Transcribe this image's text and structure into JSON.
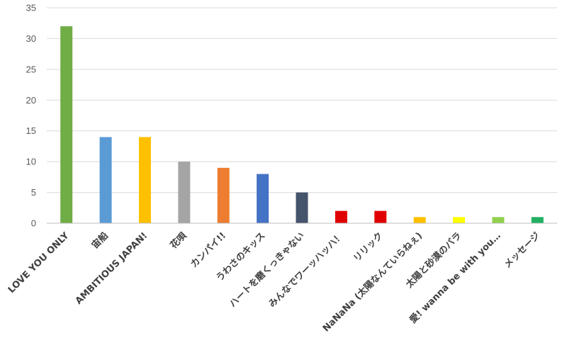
{
  "chart_data": {
    "type": "bar",
    "title": "",
    "xlabel": "",
    "ylabel": "",
    "ylim": [
      0,
      35
    ],
    "yticks": [
      0,
      5,
      10,
      15,
      20,
      25,
      30,
      35
    ],
    "grid": true,
    "legend": "none",
    "categories": [
      "LOVE YOU ONLY",
      "宙船",
      "AMBITIOUS JAPAN!",
      "花唄",
      "カンパイ!!",
      "うわさのキッス",
      "ハートを磨くっきゃない",
      "みんなでワーッハッハ！",
      "リリック",
      "NaNaNa (太陽なんていらねぇ)",
      "太陽と砂漠のバラ",
      "愛! wanna be with you…",
      "メッセージ"
    ],
    "values": [
      32,
      14,
      14,
      10,
      9,
      8,
      5,
      2,
      2,
      1,
      1,
      1,
      1
    ],
    "colors": [
      "#70ad47",
      "#5b9bd5",
      "#ffc000",
      "#a5a5a5",
      "#ed7d31",
      "#4472c4",
      "#44546a",
      "#e00000",
      "#e00000",
      "#ffc000",
      "#ffff00",
      "#92d050",
      "#20b060"
    ]
  }
}
